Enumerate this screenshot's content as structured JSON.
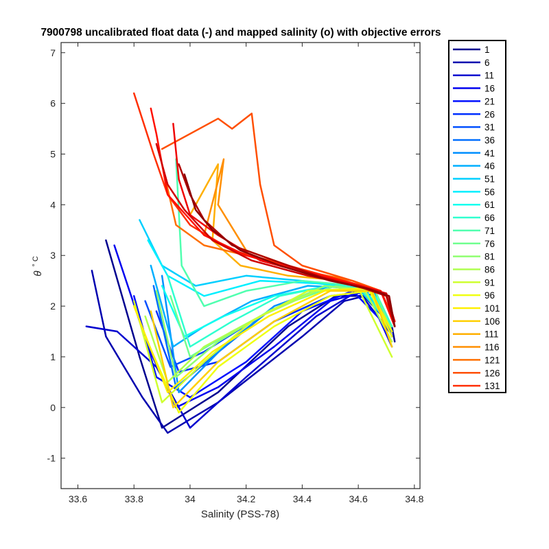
{
  "chart_data": {
    "type": "line",
    "title": "7900798 uncalibrated float data (-) and mapped salinity (o) with objective errors",
    "xlabel": "Salinity (PSS-78)",
    "ylabel_symbol": "θ",
    "ylabel_unit": "° C",
    "xlim": [
      33.54,
      34.82
    ],
    "ylim": [
      -1.6,
      7.2
    ],
    "xticks": [
      33.6,
      33.8,
      34,
      34.2,
      34.4,
      34.6,
      34.8
    ],
    "xtick_labels": [
      "33.6",
      "33.8",
      "34",
      "34.2",
      "34.4",
      "34.6",
      "34.8"
    ],
    "yticks": [
      -1,
      0,
      1,
      2,
      3,
      4,
      5,
      6,
      7
    ],
    "ytick_labels": [
      "-1",
      "0",
      "1",
      "2",
      "3",
      "4",
      "5",
      "6",
      "7"
    ],
    "legend_position": "outside-right",
    "colormap": "jet",
    "series": [
      {
        "name": "1",
        "color": "#00008F",
        "x": [
          33.7,
          33.82,
          33.9,
          34.1,
          34.35,
          34.52,
          34.62,
          34.72,
          34.73
        ],
        "y": [
          3.3,
          1.0,
          -0.4,
          0.3,
          1.6,
          2.2,
          2.2,
          1.6,
          1.3
        ]
      },
      {
        "name": "6",
        "color": "#0000AF",
        "x": [
          33.65,
          33.7,
          33.83,
          33.92,
          34.1,
          34.4,
          34.55,
          34.66,
          34.72
        ],
        "y": [
          2.7,
          1.4,
          0.2,
          -0.5,
          0.1,
          1.4,
          2.1,
          2.25,
          1.4
        ]
      },
      {
        "name": "11",
        "color": "#0000CF",
        "x": [
          33.63,
          33.74,
          33.88,
          34.0,
          34.2,
          34.45,
          34.6,
          34.71
        ],
        "y": [
          1.6,
          1.5,
          0.8,
          -0.4,
          0.6,
          1.8,
          2.3,
          1.5
        ]
      },
      {
        "name": "16",
        "color": "#0000EF",
        "x": [
          33.73,
          33.85,
          33.95,
          34.1,
          34.3,
          34.5,
          34.63,
          34.72
        ],
        "y": [
          3.2,
          1.2,
          0.0,
          0.4,
          1.2,
          2.1,
          2.3,
          1.2
        ]
      },
      {
        "name": "21",
        "color": "#000FFF",
        "x": [
          33.8,
          33.88,
          34.0,
          34.2,
          34.4,
          34.58,
          34.72
        ],
        "y": [
          2.2,
          0.6,
          0.2,
          0.9,
          1.9,
          2.3,
          1.5
        ]
      },
      {
        "name": "26",
        "color": "#002FFF",
        "x": [
          33.88,
          33.96,
          34.1,
          34.3,
          34.5,
          34.65,
          34.72
        ],
        "y": [
          1.9,
          0.7,
          0.9,
          1.7,
          2.2,
          2.3,
          1.4
        ]
      },
      {
        "name": "31",
        "color": "#004FFF",
        "x": [
          33.84,
          33.93,
          34.05,
          34.25,
          34.45,
          34.62,
          34.72
        ],
        "y": [
          2.1,
          0.8,
          1.1,
          1.8,
          2.3,
          2.35,
          1.5
        ]
      },
      {
        "name": "36",
        "color": "#006FFF",
        "x": [
          33.87,
          33.95,
          34.08,
          34.28,
          34.48,
          34.64,
          34.72
        ],
        "y": [
          2.4,
          0.4,
          1.0,
          1.9,
          2.4,
          2.3,
          1.6
        ]
      },
      {
        "name": "41",
        "color": "#008FFF",
        "x": [
          33.9,
          33.96,
          34.12,
          34.3,
          34.5,
          34.66,
          34.72
        ],
        "y": [
          2.6,
          0.3,
          1.2,
          2.0,
          2.4,
          2.3,
          1.5
        ]
      },
      {
        "name": "46",
        "color": "#00AFFF",
        "x": [
          33.86,
          33.94,
          34.05,
          34.22,
          34.42,
          34.6,
          34.72
        ],
        "y": [
          2.8,
          1.2,
          1.6,
          2.1,
          2.4,
          2.35,
          1.6
        ]
      },
      {
        "name": "51",
        "color": "#00CFFF",
        "x": [
          33.82,
          33.9,
          34.02,
          34.2,
          34.4,
          34.6,
          34.72
        ],
        "y": [
          3.7,
          2.8,
          2.4,
          2.6,
          2.5,
          2.35,
          1.6
        ]
      },
      {
        "name": "56",
        "color": "#00EFFF",
        "x": [
          33.85,
          33.92,
          34.05,
          34.25,
          34.45,
          34.62,
          34.72
        ],
        "y": [
          3.3,
          2.6,
          2.2,
          2.5,
          2.45,
          2.35,
          1.6
        ]
      },
      {
        "name": "61",
        "color": "#10FFEF",
        "x": [
          33.9,
          33.98,
          34.12,
          34.3,
          34.5,
          34.65,
          34.72
        ],
        "y": [
          2.4,
          1.4,
          1.8,
          2.2,
          2.4,
          2.3,
          1.6
        ]
      },
      {
        "name": "66",
        "color": "#30FFCF",
        "x": [
          33.92,
          34.0,
          34.15,
          34.32,
          34.5,
          34.66,
          34.72
        ],
        "y": [
          2.6,
          1.2,
          1.7,
          2.2,
          2.4,
          2.3,
          1.6
        ]
      },
      {
        "name": "71",
        "color": "#50FFAF",
        "x": [
          33.95,
          33.97,
          34.05,
          34.2,
          34.4,
          34.6,
          34.72
        ],
        "y": [
          4.9,
          2.8,
          2.0,
          2.3,
          2.5,
          2.4,
          1.6
        ]
      },
      {
        "name": "76",
        "color": "#70FF8F",
        "x": [
          33.93,
          34.0,
          34.15,
          34.32,
          34.52,
          34.66,
          34.72
        ],
        "y": [
          2.2,
          1.0,
          1.5,
          2.0,
          2.4,
          2.3,
          1.5
        ]
      },
      {
        "name": "81",
        "color": "#8FFF70",
        "x": [
          33.88,
          33.95,
          34.1,
          34.28,
          34.48,
          34.64,
          34.72
        ],
        "y": [
          2.3,
          0.6,
          1.3,
          1.9,
          2.4,
          2.3,
          1.5
        ]
      },
      {
        "name": "86",
        "color": "#AFFF50",
        "x": [
          33.84,
          33.92,
          34.05,
          34.25,
          34.45,
          34.62,
          34.72
        ],
        "y": [
          1.8,
          0.5,
          1.2,
          1.8,
          2.3,
          2.35,
          1.3
        ]
      },
      {
        "name": "91",
        "color": "#CFFF30",
        "x": [
          33.8,
          33.9,
          34.05,
          34.22,
          34.42,
          34.6,
          34.72
        ],
        "y": [
          2.1,
          0.1,
          0.9,
          1.7,
          2.3,
          2.35,
          1.0
        ]
      },
      {
        "name": "96",
        "color": "#EFFF10",
        "x": [
          33.84,
          33.96,
          34.1,
          34.3,
          34.5,
          34.64,
          34.72
        ],
        "y": [
          1.4,
          -0.1,
          0.8,
          1.6,
          2.2,
          2.3,
          1.4
        ]
      },
      {
        "name": "101",
        "color": "#FFEF00",
        "x": [
          33.8,
          33.92,
          34.08,
          34.28,
          34.48,
          34.64,
          34.72
        ],
        "y": [
          2.0,
          0.3,
          1.1,
          1.8,
          2.3,
          2.35,
          1.5
        ]
      },
      {
        "name": "106",
        "color": "#FFCF00",
        "x": [
          33.86,
          33.94,
          34.1,
          34.3,
          34.5,
          34.65,
          34.72
        ],
        "y": [
          1.9,
          0.0,
          0.9,
          1.7,
          2.3,
          2.3,
          1.2
        ]
      },
      {
        "name": "111",
        "color": "#FFAF00",
        "x": [
          34.0,
          34.1,
          34.08,
          34.18,
          34.35,
          34.55,
          34.68,
          34.73
        ],
        "y": [
          3.8,
          4.8,
          3.3,
          2.8,
          2.6,
          2.5,
          2.3,
          1.6
        ]
      },
      {
        "name": "116",
        "color": "#FF8F00",
        "x": [
          34.05,
          34.12,
          34.1,
          34.2,
          34.4,
          34.58,
          34.68,
          34.73
        ],
        "y": [
          3.4,
          4.9,
          4.0,
          3.1,
          2.7,
          2.45,
          2.3,
          1.7
        ]
      },
      {
        "name": "121",
        "color": "#FF6F00",
        "x": [
          33.9,
          33.95,
          34.05,
          34.2,
          34.4,
          34.58,
          34.68,
          34.73
        ],
        "y": [
          4.8,
          3.6,
          3.2,
          3.0,
          2.7,
          2.5,
          2.3,
          1.6
        ]
      },
      {
        "name": "126",
        "color": "#FF4F00",
        "x": [
          33.9,
          34.1,
          34.15,
          34.22,
          34.25,
          34.3,
          34.4,
          34.58,
          34.68,
          34.73
        ],
        "y": [
          5.1,
          5.7,
          5.5,
          5.8,
          4.4,
          3.2,
          2.8,
          2.5,
          2.3,
          1.7
        ]
      },
      {
        "name": "131",
        "color": "#FF2F00",
        "x": [
          33.8,
          33.87,
          33.92,
          34.0,
          34.15,
          34.35,
          34.55,
          34.68,
          34.73
        ],
        "y": [
          6.2,
          5.0,
          4.2,
          3.6,
          3.1,
          2.8,
          2.5,
          2.3,
          1.7
        ]
      },
      {
        "color": "#FF0F00",
        "x": [
          33.86,
          33.88,
          33.92,
          34.05,
          34.2,
          34.4,
          34.58,
          34.68,
          34.73
        ],
        "y": [
          5.9,
          5.4,
          4.2,
          3.4,
          3.0,
          2.7,
          2.45,
          2.3,
          1.6
        ]
      },
      {
        "color": "#EF0000",
        "x": [
          33.94,
          33.96,
          34.0,
          34.1,
          34.25,
          34.45,
          34.6,
          34.7,
          34.73
        ],
        "y": [
          5.6,
          4.5,
          3.8,
          3.4,
          2.9,
          2.6,
          2.4,
          2.25,
          1.7
        ]
      },
      {
        "color": "#CF0000",
        "x": [
          33.88,
          33.92,
          33.98,
          34.08,
          34.22,
          34.42,
          34.6,
          34.7,
          34.73
        ],
        "y": [
          5.2,
          4.4,
          3.9,
          3.3,
          2.9,
          2.6,
          2.4,
          2.25,
          1.6
        ]
      },
      {
        "color": "#AF0000",
        "x": [
          33.96,
          34.0,
          34.05,
          34.15,
          34.3,
          34.48,
          34.62,
          34.7,
          34.73
        ],
        "y": [
          4.8,
          4.2,
          3.7,
          3.2,
          2.9,
          2.55,
          2.35,
          2.2,
          1.6
        ]
      },
      {
        "color": "#8F0000",
        "x": [
          33.98,
          34.02,
          34.08,
          34.18,
          34.32,
          34.5,
          34.63,
          34.71,
          34.73
        ],
        "y": [
          4.6,
          3.9,
          3.5,
          3.1,
          2.8,
          2.5,
          2.35,
          2.2,
          1.6
        ]
      }
    ]
  }
}
